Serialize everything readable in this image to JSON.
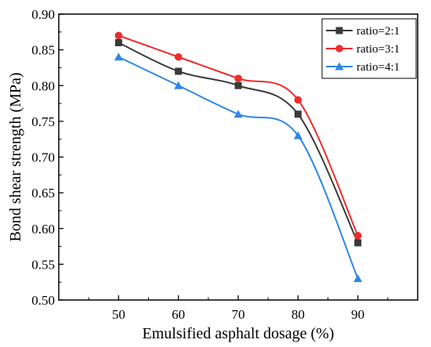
{
  "chart_data": {
    "type": "line",
    "title": "",
    "xlabel": "Emulsified asphalt dosage (%)",
    "ylabel": "Bond shear strength (MPa)",
    "x": [
      50,
      60,
      70,
      80,
      90
    ],
    "xlim": [
      40,
      100
    ],
    "ylim": [
      0.5,
      0.9
    ],
    "x_ticks": [
      "50",
      "60",
      "70",
      "80",
      "90"
    ],
    "y_ticks": [
      "0.50",
      "0.55",
      "0.60",
      "0.65",
      "0.70",
      "0.75",
      "0.80",
      "0.85",
      "0.90"
    ],
    "grid": false,
    "smooth": true,
    "legend_position": "top-right",
    "series": [
      {
        "name": "ratio=2:1",
        "values": [
          0.86,
          0.82,
          0.8,
          0.76,
          0.58
        ],
        "color": "#3a3a3a",
        "marker": "square"
      },
      {
        "name": "ratio=3:1",
        "values": [
          0.87,
          0.84,
          0.81,
          0.78,
          0.59
        ],
        "color": "#ee2b2b",
        "marker": "circle"
      },
      {
        "name": "ratio=4:1",
        "values": [
          0.84,
          0.8,
          0.76,
          0.73,
          0.53
        ],
        "color": "#2f86e6",
        "marker": "triangle"
      }
    ]
  }
}
